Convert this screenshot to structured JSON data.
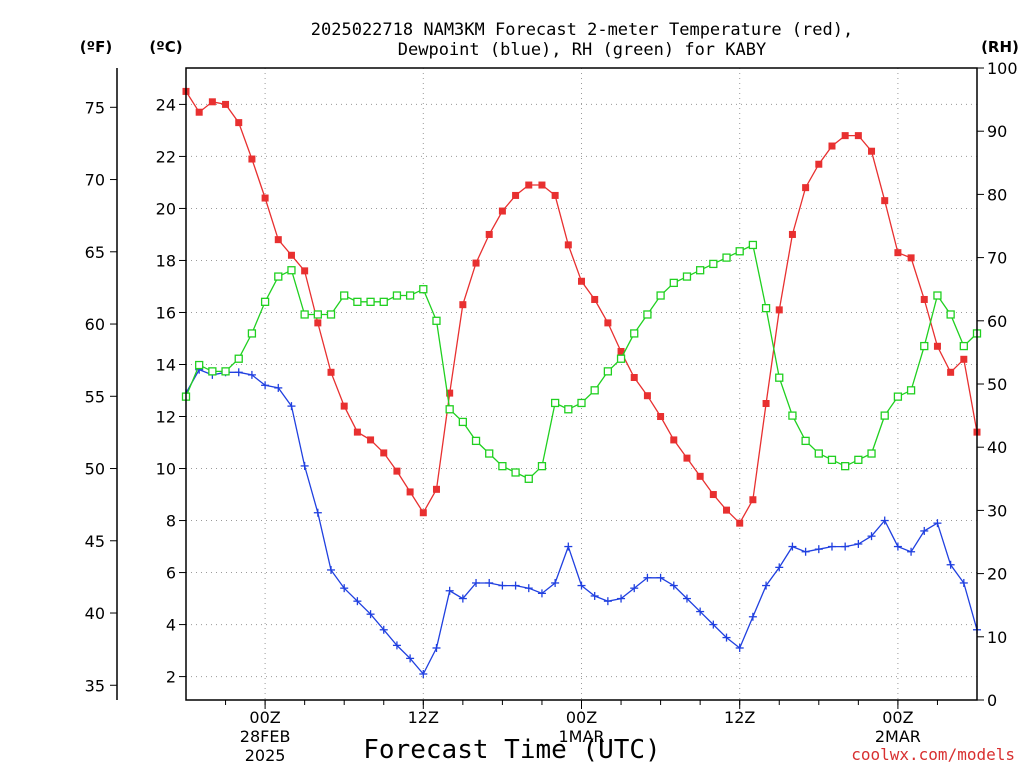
{
  "title_line1": "2025022718 NAM3KM Forecast 2-meter Temperature (red),",
  "title_line2": "Dewpoint (blue), RH (green) for KABY",
  "unit_f": "(ºF)",
  "unit_c": "(ºC)",
  "unit_rh": "(RH)",
  "xlabel": "Forecast Time (UTC)",
  "credit": "coolwx.com/models",
  "chart_data": {
    "type": "line",
    "xlabel": "Forecast Time (UTC)",
    "x_hours_from": "2025-02-27 18Z",
    "x_range_hours": [
      0,
      60
    ],
    "xticks": [
      {
        "hour": 6,
        "label": "00Z",
        "sub": [
          "28FEB",
          "2025"
        ]
      },
      {
        "hour": 18,
        "label": "12Z",
        "sub": []
      },
      {
        "hour": 30,
        "label": "00Z",
        "sub": [
          "1MAR"
        ]
      },
      {
        "hour": 42,
        "label": "12Z",
        "sub": []
      },
      {
        "hour": 54,
        "label": "00Z",
        "sub": [
          "2MAR"
        ]
      }
    ],
    "y_left_c": {
      "range": [
        1.1,
        25.4
      ],
      "ticks": [
        2,
        4,
        6,
        8,
        10,
        12,
        14,
        16,
        18,
        20,
        22,
        24
      ]
    },
    "y_left_f": {
      "ticks": [
        35,
        40,
        45,
        50,
        55,
        60,
        65,
        70,
        75
      ]
    },
    "y_right_rh": {
      "range": [
        0,
        100
      ],
      "ticks": [
        0,
        10,
        20,
        30,
        40,
        50,
        60,
        70,
        80,
        90,
        100
      ]
    },
    "grid": true,
    "series": [
      {
        "name": "Temperature",
        "color": "#e83030",
        "marker": "filled-square",
        "axis": "celsius",
        "values": [
          24.5,
          23.7,
          24.1,
          24.0,
          23.3,
          21.9,
          20.4,
          18.8,
          18.2,
          17.6,
          15.6,
          13.7,
          12.4,
          11.4,
          11.1,
          10.6,
          9.9,
          9.1,
          8.3,
          9.2,
          12.9,
          16.3,
          17.9,
          19.0,
          19.9,
          20.5,
          20.9,
          20.9,
          20.5,
          18.6,
          17.2,
          16.5,
          15.6,
          14.5,
          13.5,
          12.8,
          12.0,
          11.1,
          10.4,
          9.7,
          9.0,
          8.4,
          7.9,
          8.8,
          12.5,
          16.1,
          19.0,
          20.8,
          21.7,
          22.4,
          22.8,
          22.8,
          22.2,
          20.3,
          18.3,
          18.1,
          16.5,
          14.7,
          13.7,
          14.2,
          11.4
        ]
      },
      {
        "name": "Dewpoint",
        "color": "#2040e0",
        "marker": "plus",
        "axis": "celsius",
        "values": [
          12.9,
          13.8,
          13.6,
          13.7,
          13.7,
          13.6,
          13.2,
          13.1,
          12.4,
          10.1,
          8.3,
          6.1,
          5.4,
          4.9,
          4.4,
          3.8,
          3.2,
          2.7,
          2.1,
          3.1,
          5.3,
          5.0,
          5.6,
          5.6,
          5.5,
          5.5,
          5.4,
          5.2,
          5.6,
          7.0,
          5.5,
          5.1,
          4.9,
          5.0,
          5.4,
          5.8,
          5.8,
          5.5,
          5.0,
          4.5,
          4.0,
          3.5,
          3.1,
          4.3,
          5.5,
          6.2,
          7.0,
          6.8,
          6.9,
          7.0,
          7.0,
          7.1,
          7.4,
          8.0,
          7.0,
          6.8,
          7.6,
          7.9,
          6.3,
          5.6,
          3.8
        ]
      },
      {
        "name": "RH",
        "color": "#20d020",
        "marker": "open-square",
        "axis": "rh",
        "values": [
          48,
          53,
          52,
          52,
          54,
          58,
          63,
          67,
          68,
          61,
          61,
          61,
          64,
          63,
          63,
          63,
          64,
          64,
          65,
          60,
          46,
          44,
          41,
          39,
          37,
          36,
          35,
          37,
          47,
          46,
          47,
          49,
          52,
          54,
          58,
          61,
          64,
          66,
          67,
          68,
          69,
          70,
          71,
          72,
          62,
          51,
          45,
          41,
          39,
          38,
          37,
          38,
          39,
          45,
          48,
          49,
          56,
          64,
          61,
          56,
          58
        ]
      }
    ]
  }
}
